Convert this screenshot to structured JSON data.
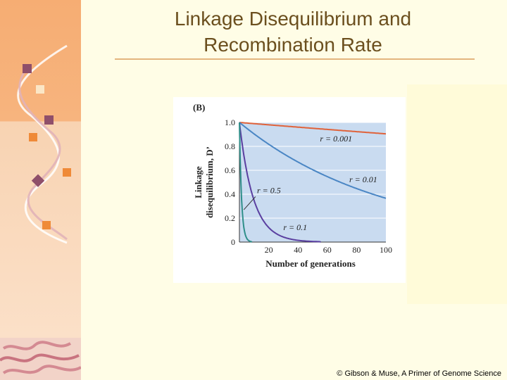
{
  "slide": {
    "title_line1": "Linkage Disequilibrium and",
    "title_line2": "Recombination Rate",
    "copyright": "© Gibson & Muse,  A Primer of Genome Science",
    "accent_color": "#6b4f1e",
    "rule_color": "#e3b57e"
  },
  "chart_data": {
    "type": "line",
    "panel_label": "(B)",
    "xlabel": "Number of generations",
    "ylabel_line1": "Linkage",
    "ylabel_line2": "disequilibrium, D’",
    "xlim": [
      0,
      100
    ],
    "ylim": [
      0,
      1.0
    ],
    "x_ticks": [
      "20",
      "40",
      "60",
      "80",
      "100"
    ],
    "x_tick_values": [
      20,
      40,
      60,
      80,
      100
    ],
    "y_ticks": [
      "0",
      "0.2",
      "0.4",
      "0.6",
      "0.8",
      "1.0"
    ],
    "y_tick_values": [
      0,
      0.2,
      0.4,
      0.6,
      0.8,
      1.0
    ],
    "grid": true,
    "background_color": "#c9dbf0",
    "series": [
      {
        "label": "r = 0.001",
        "r": 0.001,
        "color": "#e0623a",
        "x": [
          0,
          20,
          40,
          60,
          80,
          100
        ],
        "values": [
          1.0,
          0.98,
          0.96,
          0.94,
          0.92,
          0.9
        ]
      },
      {
        "label": "r = 0.01",
        "r": 0.01,
        "color": "#4a86c4",
        "x": [
          0,
          20,
          40,
          60,
          80,
          100
        ],
        "values": [
          1.0,
          0.82,
          0.67,
          0.55,
          0.45,
          0.37
        ]
      },
      {
        "label": "r = 0.1",
        "r": 0.1,
        "color": "#5a3fa0",
        "x": [
          0,
          5,
          10,
          15,
          20,
          30,
          40
        ],
        "values": [
          1.0,
          0.59,
          0.35,
          0.21,
          0.12,
          0.04,
          0.01
        ]
      },
      {
        "label": "r = 0.5",
        "r": 0.5,
        "color": "#2f8f8a",
        "x": [
          0,
          1,
          2,
          3,
          4,
          6,
          10
        ],
        "values": [
          1.0,
          0.5,
          0.25,
          0.13,
          0.06,
          0.02,
          0.0
        ]
      }
    ],
    "annotations": [
      {
        "text": "r = 0.001",
        "series": 0
      },
      {
        "text": "r = 0.01",
        "series": 1
      },
      {
        "text": "r = 0.5",
        "series": 3
      },
      {
        "text": "r = 0.1",
        "series": 2
      }
    ]
  }
}
